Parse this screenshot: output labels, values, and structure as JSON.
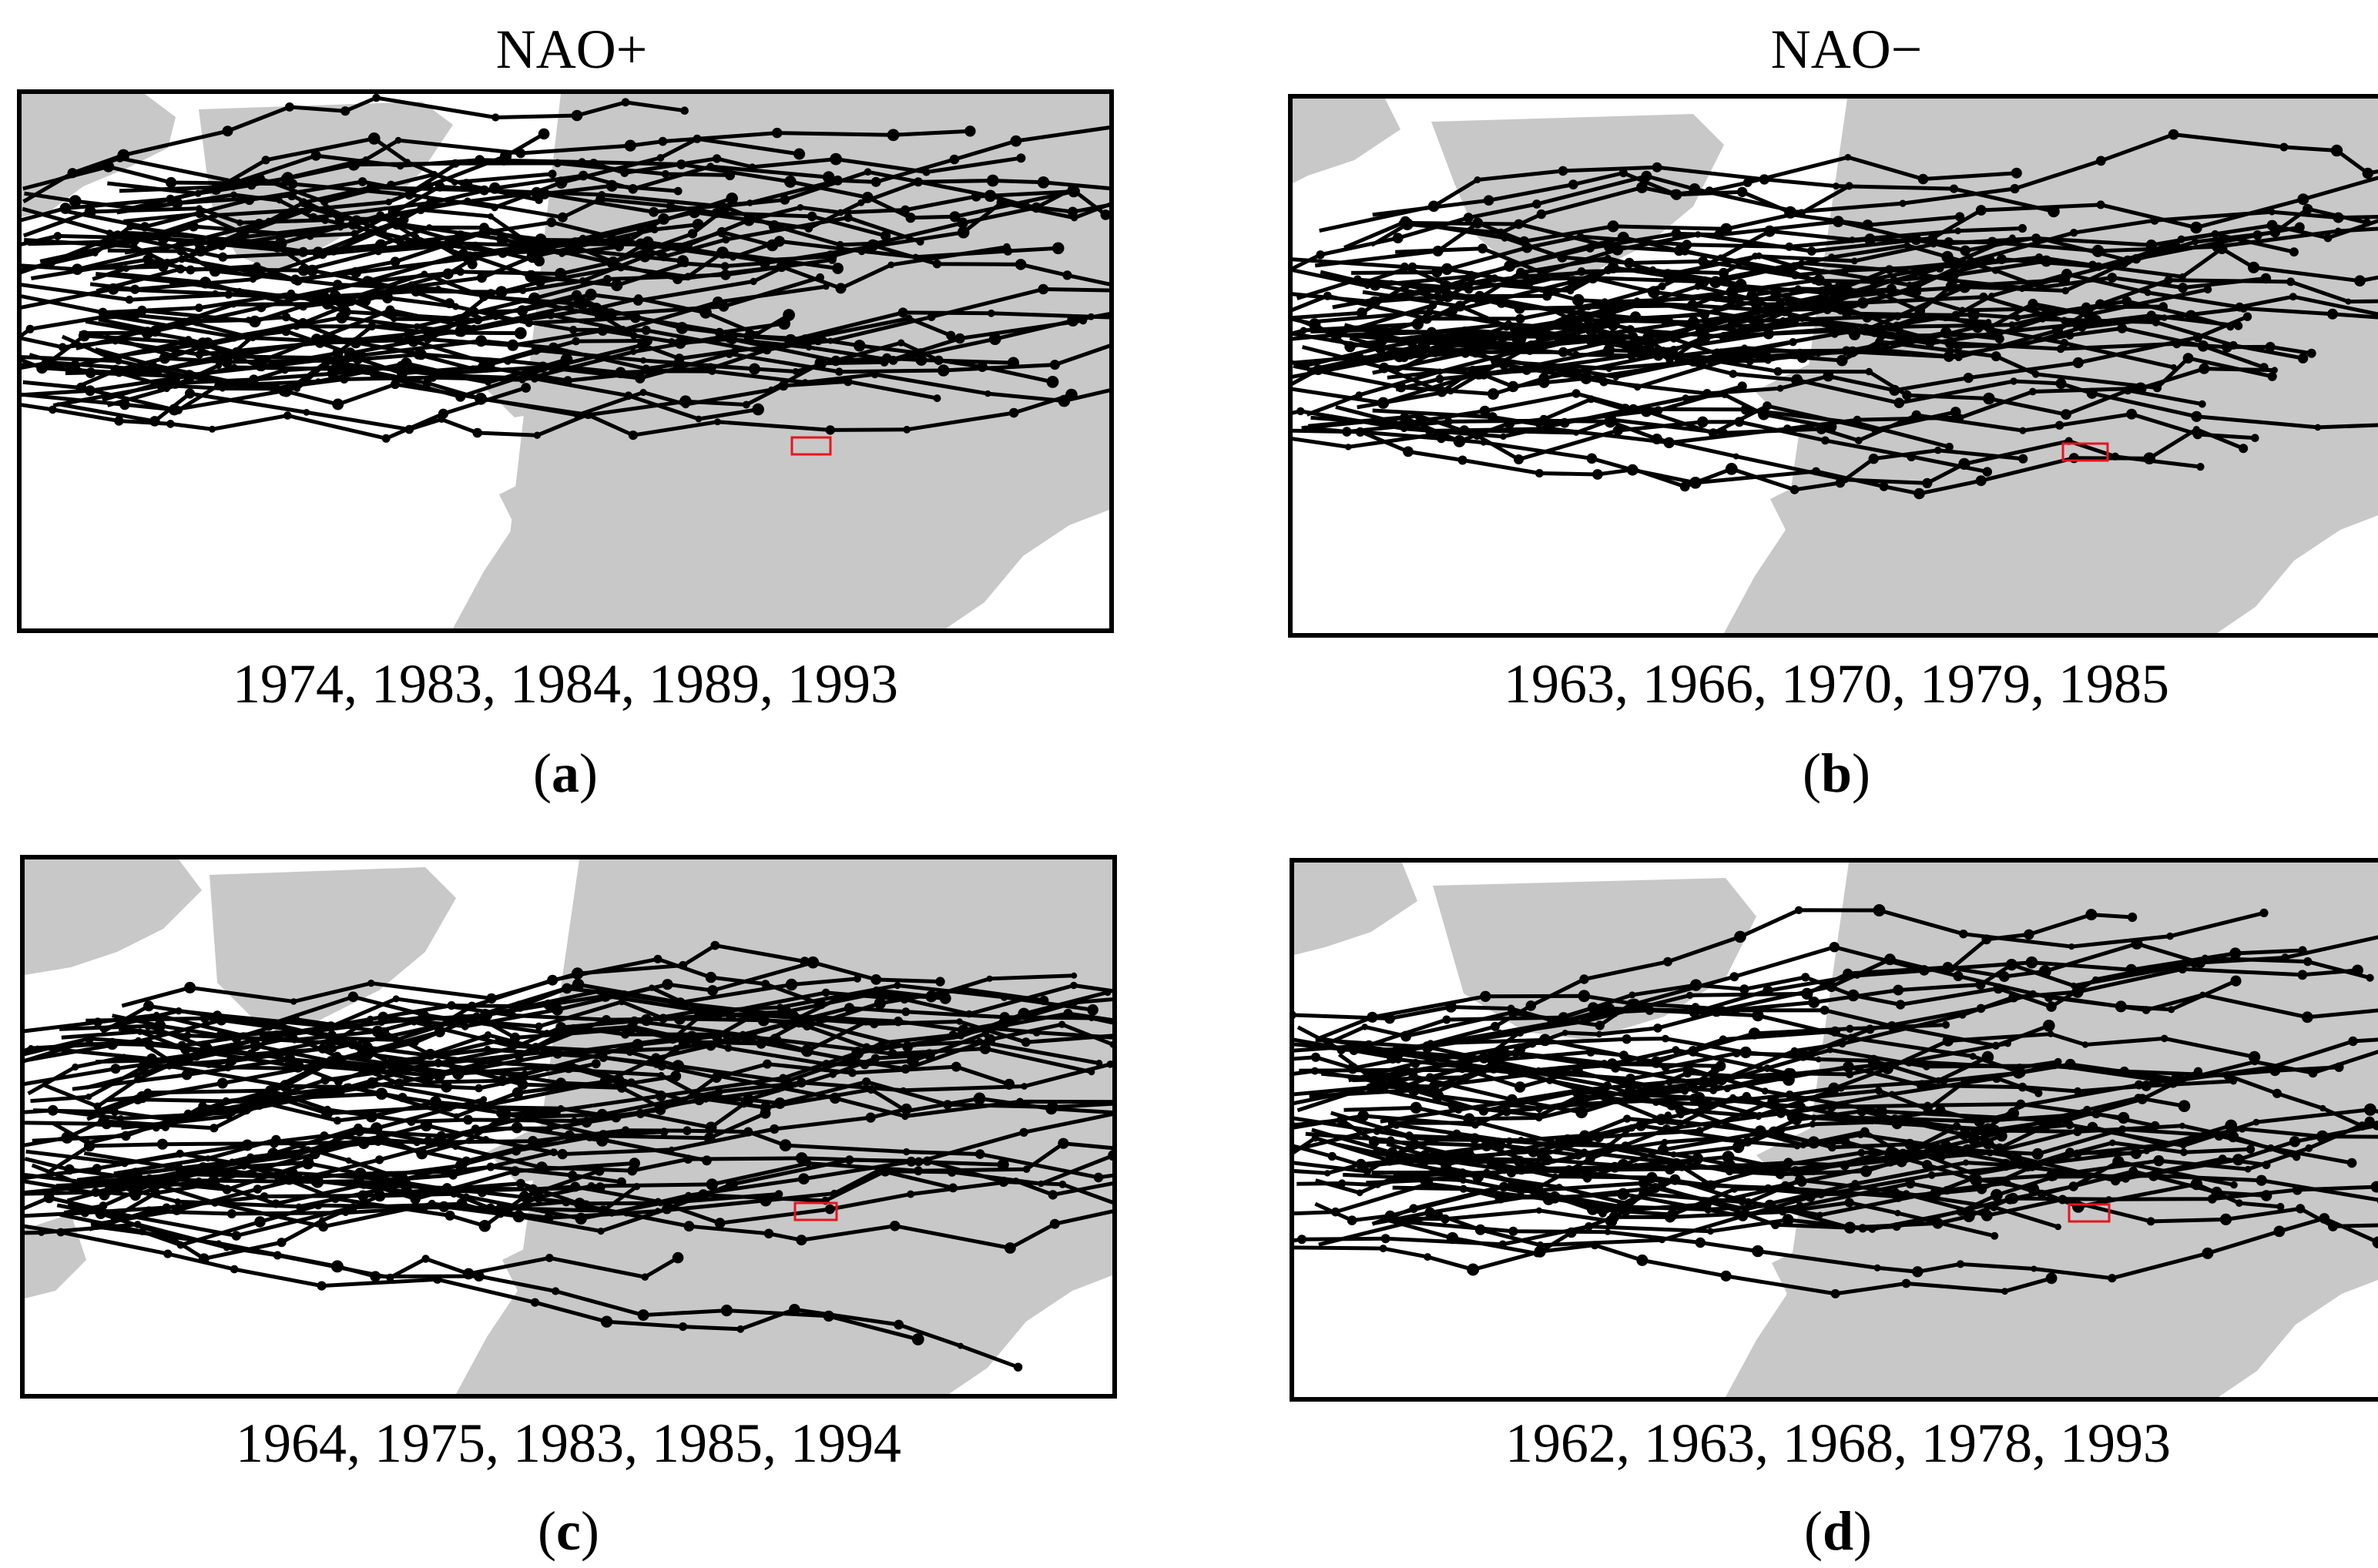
{
  "titles": {
    "left": "NAO+",
    "right": "NAO−"
  },
  "panels": [
    {
      "id": "a",
      "years": "1974, 1983, 1984, 1989, 1993",
      "letter": "a"
    },
    {
      "id": "b",
      "years": "1963, 1966, 1970, 1979, 1985",
      "letter": "b"
    },
    {
      "id": "c",
      "years": "1964, 1975, 1983, 1985, 1994",
      "letter": "c"
    },
    {
      "id": "d",
      "years": "1962, 1963, 1968, 1978, 1993",
      "letter": "d"
    }
  ],
  "colors": {
    "land": "#c8c8c8",
    "sea": "#ffffff",
    "tracks": "#000000",
    "target_box": "#e8141e"
  }
}
